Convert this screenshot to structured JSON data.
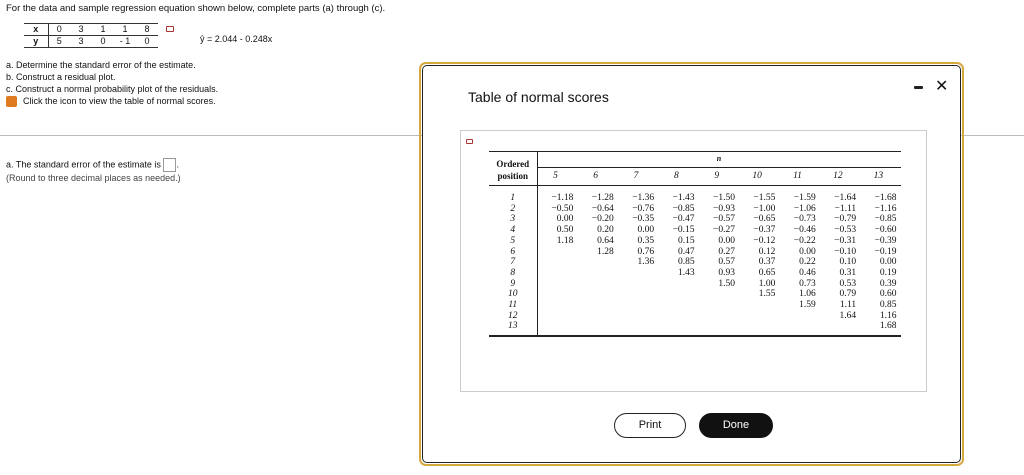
{
  "intro": "For the data and sample regression equation shown below, complete parts (a) through (c).",
  "data_table": {
    "x_label": "x",
    "y_label": "y",
    "x": [
      "0",
      "3",
      "1",
      "1",
      "8"
    ],
    "y": [
      "5",
      "3",
      "0",
      "- 1",
      "0"
    ]
  },
  "equation": "ŷ = 2.044 - 0.248x",
  "parts": [
    "a. Determine the standard error of the estimate.",
    "b. Construct a residual plot.",
    "c. Construct a normal probability plot of the residuals."
  ],
  "icon_link": "Click the icon to view the table of normal scores.",
  "answer": {
    "prefix": "a. The standard error of the estimate is",
    "suffix": ".",
    "value": "",
    "note": "(Round to three decimal places as needed.)"
  },
  "modal": {
    "title": "Table of normal scores",
    "minimize": "-",
    "close": "✕",
    "print": "Print",
    "done": "Done"
  },
  "normal_table": {
    "row_header": [
      "Ordered",
      "position"
    ],
    "n_label": "n",
    "columns": [
      "5",
      "6",
      "7",
      "8",
      "9",
      "10",
      "11",
      "12",
      "13"
    ],
    "positions": [
      "1",
      "2",
      "3",
      "4",
      "5",
      "6",
      "7",
      "8",
      "9",
      "10",
      "11",
      "12",
      "13"
    ],
    "rows": [
      [
        "−1.18",
        "−1.28",
        "−1.36",
        "−1.43",
        "−1.50",
        "−1.55",
        "−1.59",
        "−1.64",
        "−1.68"
      ],
      [
        "−0.50",
        "−0.64",
        "−0.76",
        "−0.85",
        "−0.93",
        "−1.00",
        "−1.06",
        "−1.11",
        "−1.16"
      ],
      [
        "0.00",
        "−0.20",
        "−0.35",
        "−0.47",
        "−0.57",
        "−0.65",
        "−0.73",
        "−0.79",
        "−0.85"
      ],
      [
        "0.50",
        "0.20",
        "0.00",
        "−0.15",
        "−0.27",
        "−0.37",
        "−0.46",
        "−0.53",
        "−0.60"
      ],
      [
        "1.18",
        "0.64",
        "0.35",
        "0.15",
        "0.00",
        "−0.12",
        "−0.22",
        "−0.31",
        "−0.39"
      ],
      [
        "",
        "1.28",
        "0.76",
        "0.47",
        "0.27",
        "0.12",
        "0.00",
        "−0.10",
        "−0.19"
      ],
      [
        "",
        "",
        "1.36",
        "0.85",
        "0.57",
        "0.37",
        "0.22",
        "0.10",
        "0.00"
      ],
      [
        "",
        "",
        "",
        "1.43",
        "0.93",
        "0.65",
        "0.46",
        "0.31",
        "0.19"
      ],
      [
        "",
        "",
        "",
        "",
        "1.50",
        "1.00",
        "0.73",
        "0.53",
        "0.39"
      ],
      [
        "",
        "",
        "",
        "",
        "",
        "1.55",
        "1.06",
        "0.79",
        "0.60"
      ],
      [
        "",
        "",
        "",
        "",
        "",
        "",
        "1.59",
        "1.11",
        "0.85"
      ],
      [
        "",
        "",
        "",
        "",
        "",
        "",
        "",
        "1.64",
        "1.16"
      ],
      [
        "",
        "",
        "",
        "",
        "",
        "",
        "",
        "",
        "1.68"
      ]
    ]
  },
  "colors": {
    "modal_border": "#d4a83c",
    "book_icon": "#e07a20"
  }
}
